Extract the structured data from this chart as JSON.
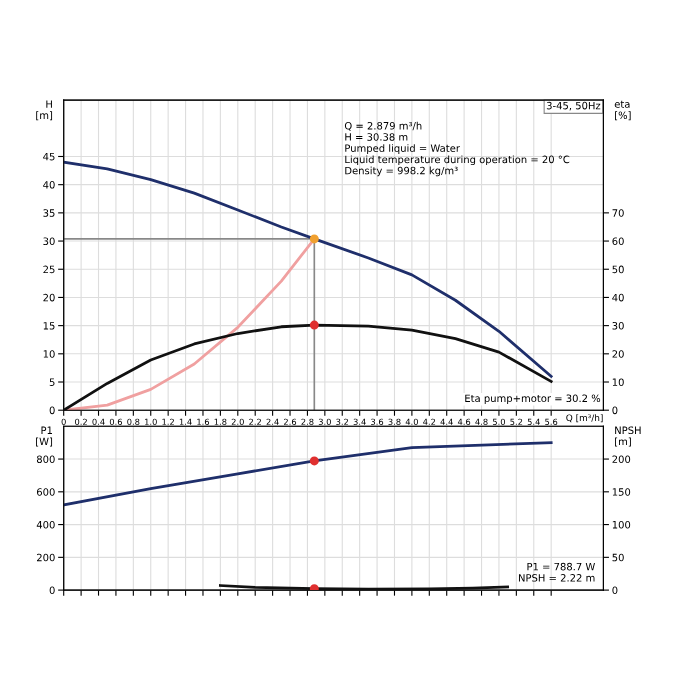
{
  "chart_data": [
    {
      "type": "line",
      "title": "3-45, 50Hz",
      "xlabel": "Q [m³/h]",
      "ylabel": "H\n[m]",
      "y2label": "eta\n[%]",
      "series": [
        {
          "color": "#1f2f6b",
          "x": [
            0,
            0.5,
            1,
            1.5,
            2,
            2.5,
            2.879,
            3.5,
            4,
            4.5,
            5,
            5.6
          ],
          "values": [
            44,
            42.8,
            40.9,
            38.5,
            35.5,
            32.5,
            30.38,
            27,
            24,
            19.5,
            14,
            6
          ]
        },
        {
          "color": "#f0a0a0",
          "x": [
            0,
            0.5,
            1,
            1.5,
            2,
            2.5,
            2.879
          ],
          "values": [
            0,
            0.9,
            3.7,
            8.2,
            14.7,
            22.9,
            30.38
          ]
        },
        {
          "axis": "y2",
          "color": "#111111",
          "x": [
            0,
            0.5,
            1,
            1.5,
            2,
            2.5,
            2.879,
            3.5,
            4,
            4.5,
            5,
            5.6
          ],
          "values": [
            0,
            9.5,
            17.8,
            23.5,
            27.2,
            29.6,
            30.2,
            29.8,
            28.4,
            25.4,
            20.6,
            10.2
          ]
        },
        {
          "type": "scatter",
          "color": "#f0a030",
          "x": [
            2.879
          ],
          "values": [
            30.38
          ]
        },
        {
          "type": "scatter",
          "axis": "y2",
          "color": "#e03030",
          "x": [
            2.879
          ],
          "values": [
            30.2
          ]
        }
      ],
      "ref_lines": [
        {
          "axis": "x",
          "value": 2.879,
          "color": "#888888"
        },
        {
          "axis": "y",
          "value": 30.38,
          "color": "#888888"
        }
      ],
      "annotations": [
        "Q = 2.879 m³/h",
        "H = 30.38 m",
        "Pumped liquid = Water",
        "Liquid temperature during operation = 20 °C",
        "Density = 998.2 kg/m³",
        "Eta pump+motor = 30.2 %"
      ],
      "xlim": [
        0,
        6.2
      ],
      "xticks": [
        0,
        0.2,
        0.4,
        0.6,
        0.8,
        {
          "value": 1.0,
          "label": "1.0"
        },
        1.2,
        1.4,
        1.6,
        1.8,
        {
          "value": 2.0,
          "label": "2.0"
        },
        2.2,
        2.4,
        2.6,
        2.8,
        {
          "value": 3.0,
          "label": "3.0"
        },
        3.2,
        3.4,
        3.6,
        3.8,
        {
          "value": 4.0,
          "label": "4.0"
        },
        4.2,
        4.4,
        4.6,
        4.8,
        {
          "value": 5.0,
          "label": "5.0"
        },
        5.2,
        5.4,
        5.6
      ],
      "ylim": [
        0,
        55
      ],
      "yticks": [
        0,
        5,
        10,
        15,
        20,
        25,
        30,
        35,
        40,
        45
      ],
      "y2lim": [
        0,
        110
      ],
      "y2ticks": [
        0,
        10,
        20,
        30,
        40,
        50,
        60,
        70
      ],
      "grid": true,
      "line_style": "solid"
    },
    {
      "type": "line",
      "ylabel": "P1\n[W]",
      "y2label": "NPSH\n[m]",
      "series": [
        {
          "color": "#1f2f6b",
          "x": [
            0,
            1,
            2,
            2.879,
            4,
            5.6
          ],
          "values": [
            520,
            620,
            710,
            788.7,
            870,
            900
          ]
        },
        {
          "axis": "y2",
          "color": "#111111",
          "x": [
            1.8,
            2.2,
            2.879,
            3.5,
            4.2,
            4.7,
            5.1
          ],
          "values": [
            7,
            4,
            2.22,
            1.5,
            1.8,
            3,
            5
          ]
        },
        {
          "type": "scatter",
          "color": "#e03030",
          "x": [
            2.879
          ],
          "values": [
            788.7
          ]
        },
        {
          "type": "scatter",
          "axis": "y2",
          "color": "#e03030",
          "x": [
            2.879
          ],
          "values": [
            2.22
          ]
        }
      ],
      "annotations": [
        "P1 = 788.7 W",
        "NPSH = 2.22 m"
      ],
      "xlim": [
        0,
        6.2
      ],
      "xticks": [
        0,
        0.2,
        0.4,
        0.6,
        0.8,
        1.0,
        1.2,
        1.4,
        1.6,
        1.8,
        2.0,
        2.2,
        2.4,
        2.6,
        2.8,
        3.0,
        3.2,
        3.4,
        3.6,
        3.8,
        4.0,
        4.2,
        4.4,
        4.6,
        4.8,
        5.0,
        5.2,
        5.4,
        5.6
      ],
      "ylim": [
        0,
        1000
      ],
      "yticks": [
        0,
        200,
        400,
        600,
        800
      ],
      "y2lim": [
        0,
        250
      ],
      "y2ticks": [
        0,
        50,
        100,
        150,
        200
      ],
      "tick_labels": "y",
      "grid": true,
      "line_style": "solid"
    }
  ]
}
